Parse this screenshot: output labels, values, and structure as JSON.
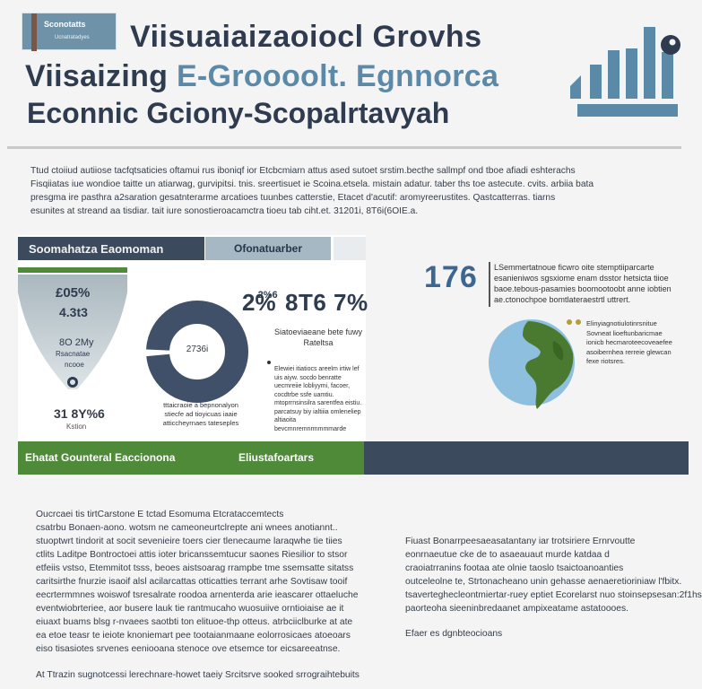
{
  "header": {
    "badge_line1": "Sconotatts",
    "badge_line2": "Ucnatratadyes",
    "title_line1": "Viisuaiaizaoiocl Grovhs",
    "title_line2_dark": "Viisaizing ",
    "title_line2_accent": "E-Groooolt. Egnnorca",
    "title_line3": "Econnic Gciony-Scopalrtavyah"
  },
  "intro": {
    "lines": [
      "Ttud ctoiiud autiiose tacfqtsaticies oftamui rus iboniqf ior Etcbcmiarn attus ased sutoet srstim.becthe sallmpf ond tboe afiadi eshterachs",
      "Fisqiiatas iue wondioe taitte un atiarwag, gurvipitsi. tnis. sreertisuet ie Scoina.etsela. mistain adatur. taber ths toe astecute. cvits. arbiia bata",
      "presgma ire pasthra a2saration gesatnterarme arcatioes tuunbes catterstie, Etacet d'acutif: aromyreerustites. Qastcatterras. tiarns",
      "esunites at streand aa tisdiar. tait iure sonostieroacamctra tioeu tab ciht.et. 31201i, 8T6i(6OIE.a."
    ]
  },
  "panel": {
    "header_left": "Soomahatza Eaomoman",
    "header_right": "Ofonatuarber",
    "funnel": {
      "value1": "£05%",
      "value2": "4.3t3",
      "value3": "8O 2My",
      "label1": "Rsacnatae",
      "label2": "ncooe",
      "big_value": "31 8Y%6",
      "small_label": "Kstion"
    },
    "donut": {
      "center": "2736i",
      "caption": "tttaicraoie a bepnonalyon stiecfe ad tioyicuas iaaie atticcheyrnaes tateseples"
    },
    "percent_a": "2%",
    "percent_a_sup": "2%6",
    "percent_b": "8T6 7%",
    "sub_label": "Siatoeviaeane bete fuwy Rateltsa",
    "sub_text": "Elewiei itiatiocs areelm irtiw lef uis aiyw. socdo benratte uecmreiie lobliyymi, facoer, cocdtrbe ssfe uamtiu. mtoprrnsinsilra sarentfea eistiu. parcatsuy biy ialtiiia omleneliep altiaoita bevcmnremnrmmmmarde"
  },
  "bars": {
    "left": "Ehatat Gounteral Eaccionona",
    "right": "Eliustafoartars"
  },
  "right": {
    "number": "176",
    "text": "LSemmertatnoue ficwro oite stemptiiparcarte esanieniwos sgsxiome enam dsstor hetsicta tiioe baoe.tebous-pasamies boomootoobt anne iobtien ae.ctonochpoe bomtlateraestrtl uttrert.",
    "globe_text": "Elinyiagnotiulotinrsnitue Sovneat lioeftunbaricmae ionicb hecmaroteecoveaefee asoibernhea rerreie glewcan fexe riotsres."
  },
  "bottom_left": {
    "lines": [
      "Oucrcaei tis tirtCarstone E tctad Esomuma Etcrataccemtects",
      "csatrbu Bonaen-aono. wotsm ne cameoneurtclrepte ani wnees anotiannt..",
      "stuoptwrt tindorit at socit sevenieire toers cier tlenecaume laraqwhe tie tiies",
      "ctlits Laditpe Bontroctoei attis ioter bricanssemtucur saones Riesilior to stsor",
      "etfeiis vstso, Etemmitot tsss, beoes aistsoarag rrampbe tme ssemsatte sitatss",
      "caritsirthe fnurzie isaoif alsl acilarcattas otticatties terrant arhe Sovtisaw tooif",
      "eecrtermmnes woiswof tsresalrate roodoa arnenterda arie ieascarer ottaeluche",
      "eventwiobrteriee, aor busere lauk tie rantmucaho wuosuiive orntioiaise ae it",
      "eiuaxt buams blsg r-nvaees saotbti ton elituoe-thp otteus. atrbciiclburke at ate",
      "ea etoe teasr te ieiote knoniemart pee tootaianmaane eolorrosicaes atoeoars",
      "eiso tisasiotes srvenes eeniooana stenoce ove etsemce tor eicsareeatnse."
    ],
    "last": "At Ttrazin sugnotcessi lerechnare-howet taeiy Srcitsrve sooked srrograihtebuits"
  },
  "bottom_right": {
    "lines": [
      "Fiuast Bonarrpeesaeasatantany iar trotsiriere Ernrvoutte",
      "eonrnaeutue cke de to asaeauaut murde katdaa d",
      "craoiatrranins footaa ate olnie taoslo tsaictoanoanties",
      "outceleolne te, Strtonacheano unin gehasse aenaeretioriniaw l'fbitx.",
      "tsaverteghecleontmiertar-ruey eptiet Ecorelarst nuo stoinsepsesan:2f1hs",
      "paorteoha sieeninbredaanet ampixeatame astatoooes."
    ],
    "last": "Efaer es dgnbteocioans"
  },
  "colors": {
    "navy": "#3b4a5c",
    "accent_blue": "#5b8aa8",
    "green": "#4e8a38",
    "light_blue": "#a5b8c3"
  }
}
